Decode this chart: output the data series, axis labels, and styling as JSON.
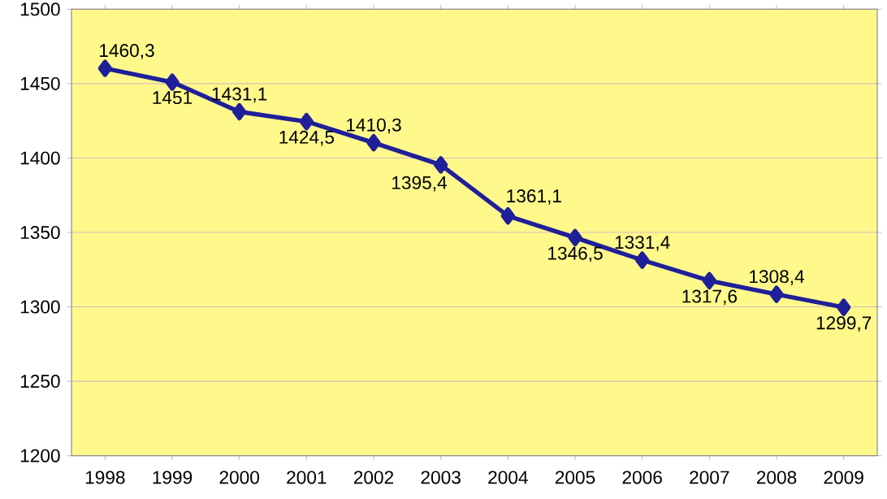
{
  "chart_data": {
    "type": "line",
    "categories": [
      "1998",
      "1999",
      "2000",
      "2001",
      "2002",
      "2003",
      "2004",
      "2005",
      "2006",
      "2007",
      "2008",
      "2009"
    ],
    "values": [
      1460.3,
      1451,
      1431.1,
      1424.5,
      1410.3,
      1395.4,
      1361.1,
      1346.5,
      1331.4,
      1317.6,
      1308.4,
      1299.7
    ],
    "value_labels": [
      "1460,3",
      "1451",
      "1431,1",
      "1424,5",
      "1410,3",
      "1395,4",
      "1361,1",
      "1346,5",
      "1331,4",
      "1317,6",
      "1308,4",
      "1299,7"
    ],
    "color": "#1f1f99",
    "marker": "diamond",
    "line_style": "solid",
    "grid": "y",
    "ylim": [
      1200,
      1500
    ],
    "yticks": [
      1200,
      1250,
      1300,
      1350,
      1400,
      1450,
      1500
    ]
  }
}
